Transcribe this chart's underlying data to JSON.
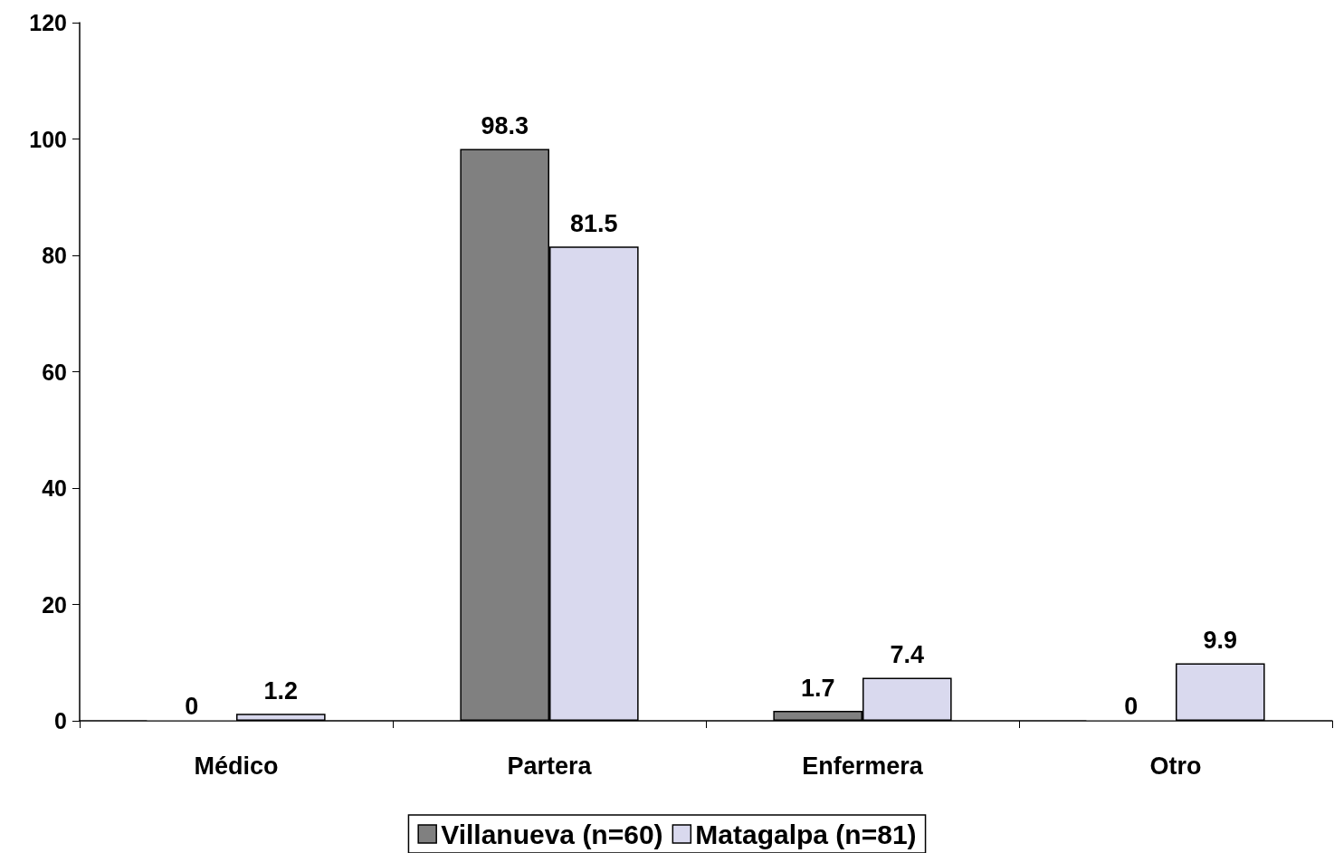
{
  "chart_data": {
    "type": "bar",
    "categories": [
      "Médico",
      "Partera",
      "Enfermera",
      "Otro"
    ],
    "series": [
      {
        "name": "Villanueva (n=60)",
        "color": "#808080",
        "values": [
          0,
          98.3,
          1.7,
          0
        ]
      },
      {
        "name": "Matagalpa (n=81)",
        "color": "#d9d9ee",
        "values": [
          1.2,
          81.5,
          7.4,
          9.9
        ]
      }
    ],
    "ylim": [
      0,
      120
    ],
    "yticks": [
      0,
      20,
      40,
      60,
      80,
      100,
      120
    ],
    "grid": false,
    "legend": "bottom",
    "data_labels": true
  }
}
